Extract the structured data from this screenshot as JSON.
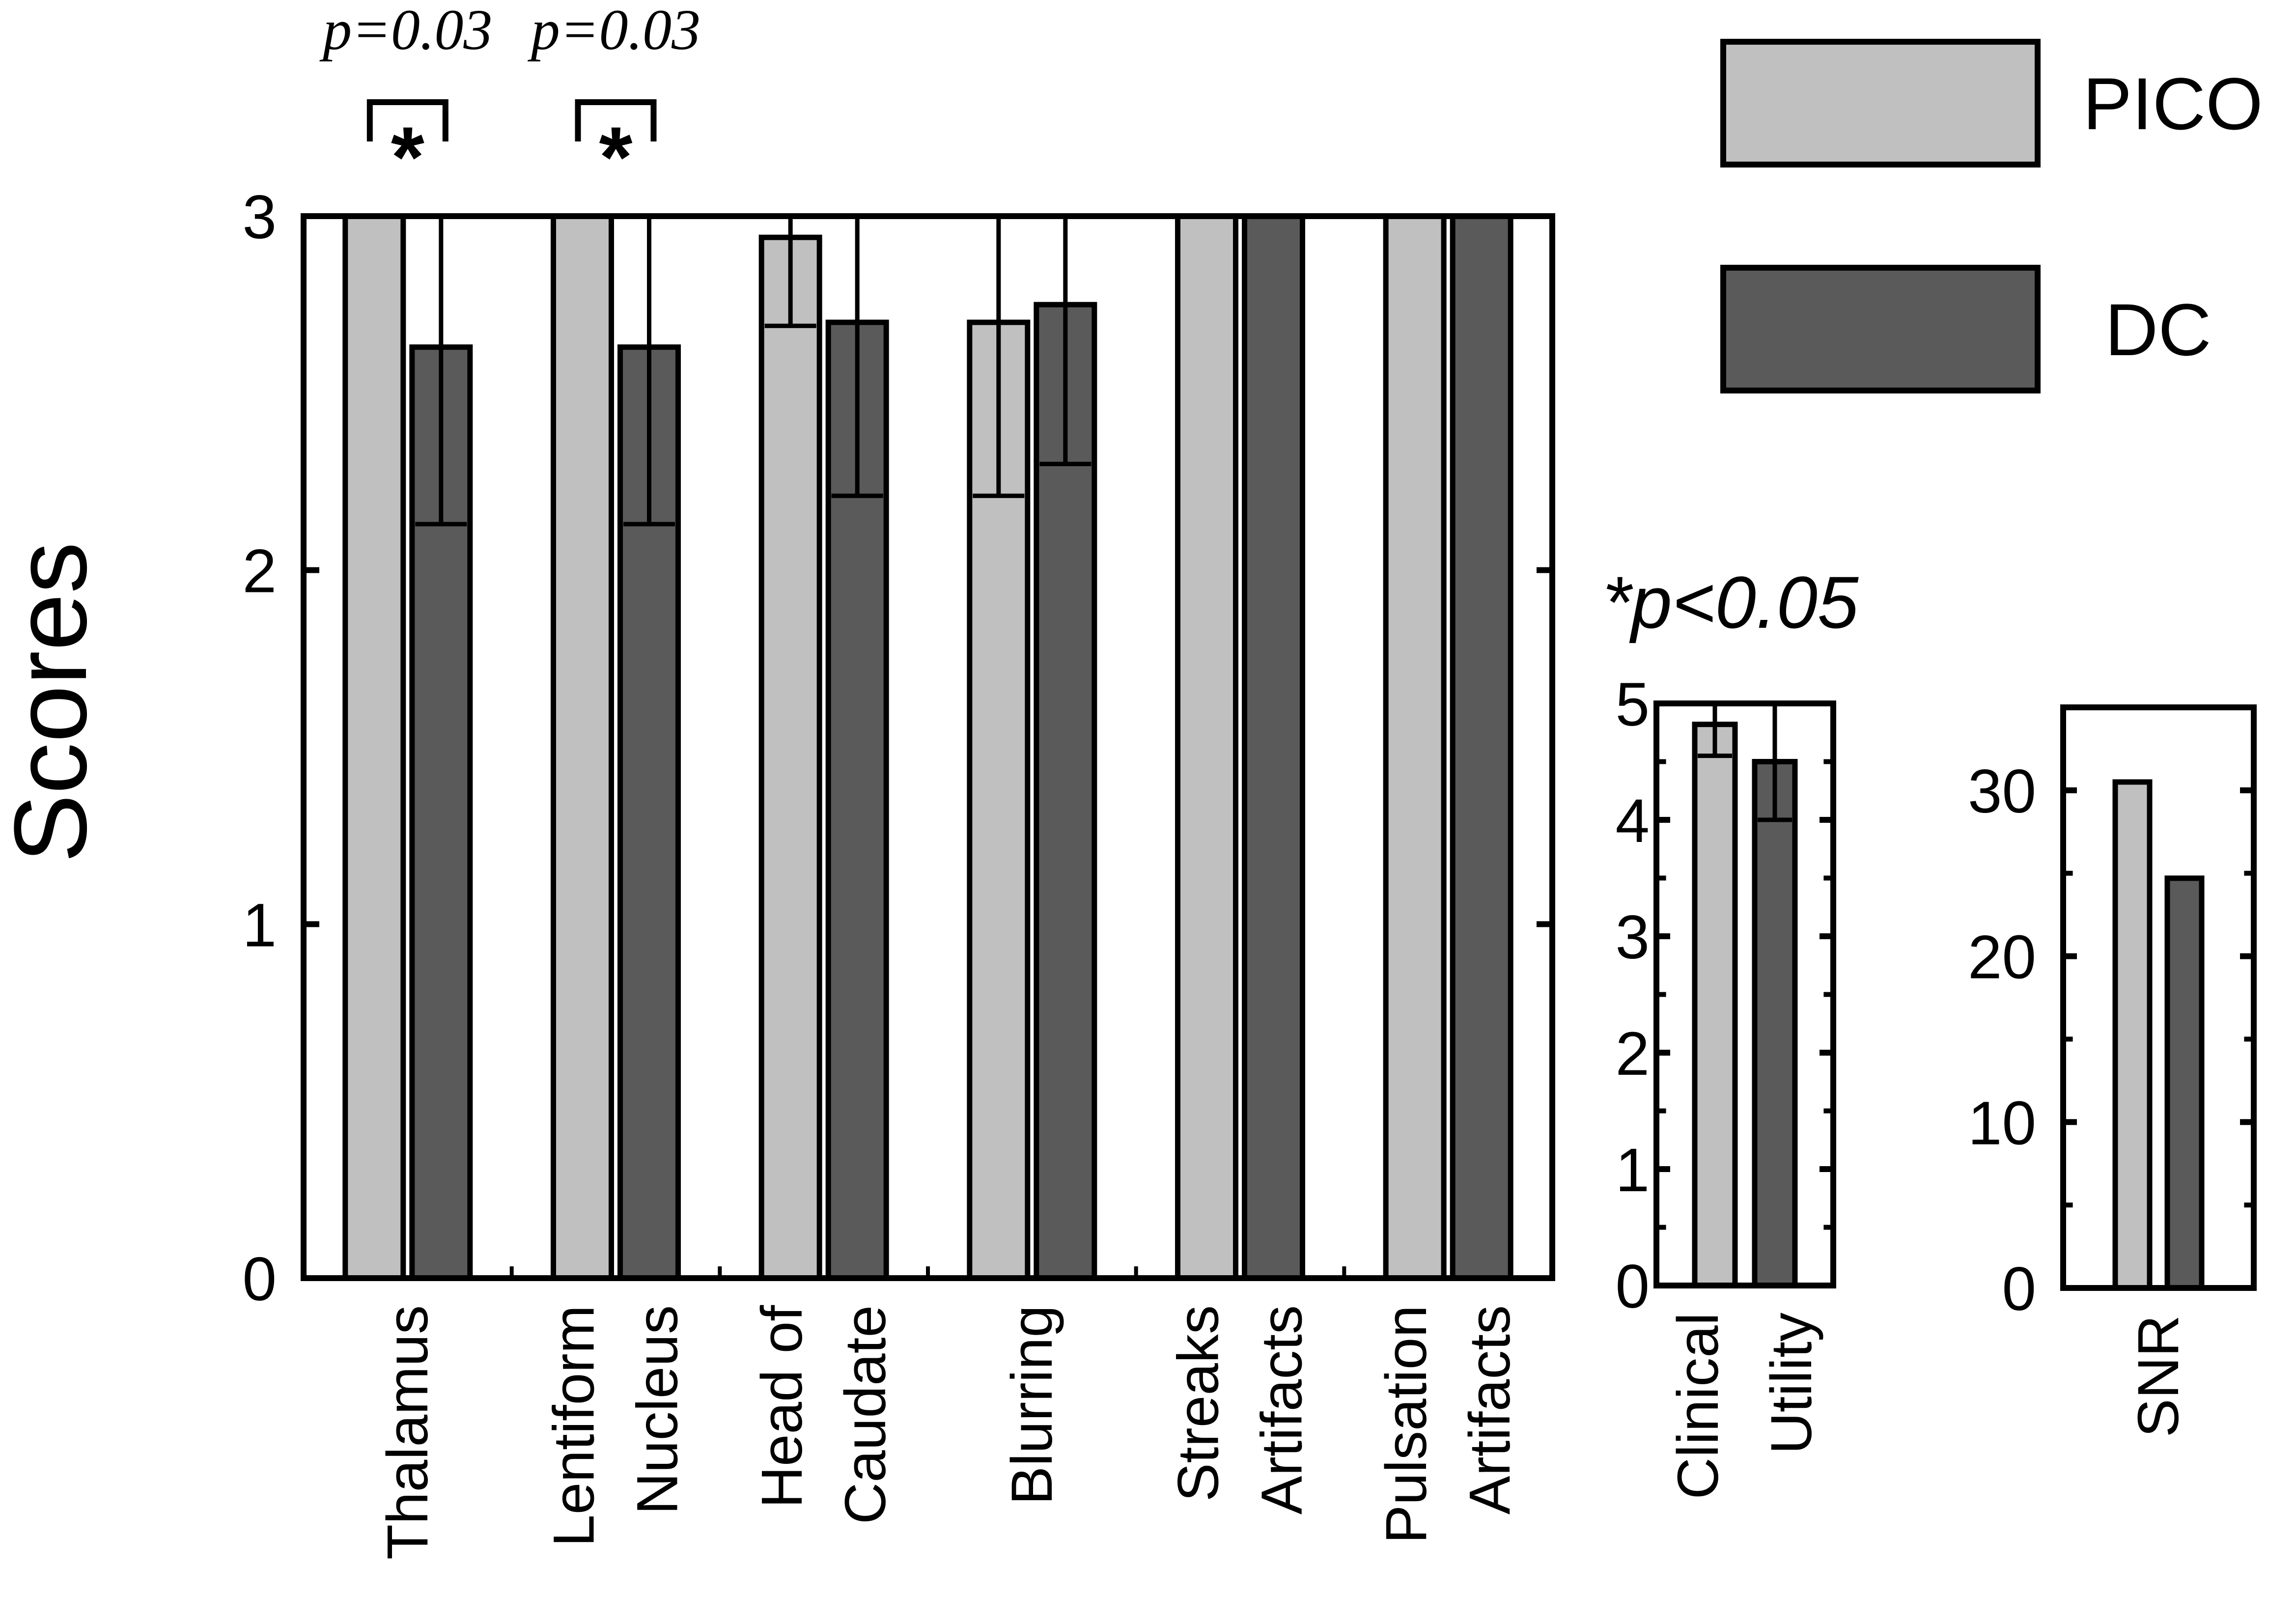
{
  "chart_data": [
    {
      "type": "bar",
      "ylabel": "Scores",
      "ylim": [
        0,
        3
      ],
      "yticks": [
        0,
        1,
        2,
        3
      ],
      "grid": false,
      "categories": [
        [
          "Thalamus"
        ],
        [
          "Lentiform",
          "Nucleus"
        ],
        [
          "Head of",
          "Caudate"
        ],
        [
          "Blurring"
        ],
        [
          "Streaks",
          "Artifacts"
        ],
        [
          "Pulsation",
          "Artifacts"
        ]
      ],
      "series": [
        {
          "name": "PICO",
          "color": "#c0c0c0",
          "values": [
            3.0,
            3.0,
            2.94,
            2.7,
            3.0,
            3.0
          ],
          "err_low": [
            3.0,
            3.0,
            2.69,
            2.21,
            3.0,
            3.0
          ],
          "err_high": [
            3.0,
            3.0,
            3.0,
            3.0,
            3.0,
            3.0
          ]
        },
        {
          "name": "DC",
          "color": "#5a5a5a",
          "values": [
            2.63,
            2.63,
            2.7,
            2.75,
            3.0,
            3.0
          ],
          "err_low": [
            2.13,
            2.13,
            2.21,
            2.3,
            3.0,
            3.0
          ],
          "err_high": [
            3.0,
            3.0,
            3.0,
            3.0,
            3.0,
            3.0
          ]
        }
      ],
      "annotations": [
        {
          "category_index": 0,
          "text": "p=0.03",
          "marker": "*"
        },
        {
          "category_index": 1,
          "text": "p=0.03",
          "marker": "*"
        }
      ]
    },
    {
      "type": "bar",
      "ylim": [
        0,
        5
      ],
      "yticks": [
        0,
        1,
        2,
        3,
        4,
        5
      ],
      "categories": [
        [
          "Clinical",
          "Utility"
        ]
      ],
      "series": [
        {
          "name": "PICO",
          "color": "#c0c0c0",
          "values": [
            4.82
          ],
          "err_low": [
            4.55
          ],
          "err_high": [
            5.0
          ]
        },
        {
          "name": "DC",
          "color": "#5a5a5a",
          "values": [
            4.5
          ],
          "err_low": [
            4.0
          ],
          "err_high": [
            5.0
          ]
        }
      ]
    },
    {
      "type": "bar",
      "ylim": [
        0,
        35
      ],
      "yticks": [
        0,
        10,
        20,
        30
      ],
      "categories": [
        [
          "SNR"
        ]
      ],
      "series": [
        {
          "name": "PICO",
          "color": "#c0c0c0",
          "values": [
            30.5
          ]
        },
        {
          "name": "DC",
          "color": "#5a5a5a",
          "values": [
            24.7
          ]
        }
      ]
    }
  ],
  "legend": {
    "placement": "top-right",
    "items": [
      {
        "label": "PICO",
        "color": "#c0c0c0"
      },
      {
        "label": "DC",
        "color": "#5a5a5a"
      }
    ]
  },
  "significance_note": "*p<0.05"
}
